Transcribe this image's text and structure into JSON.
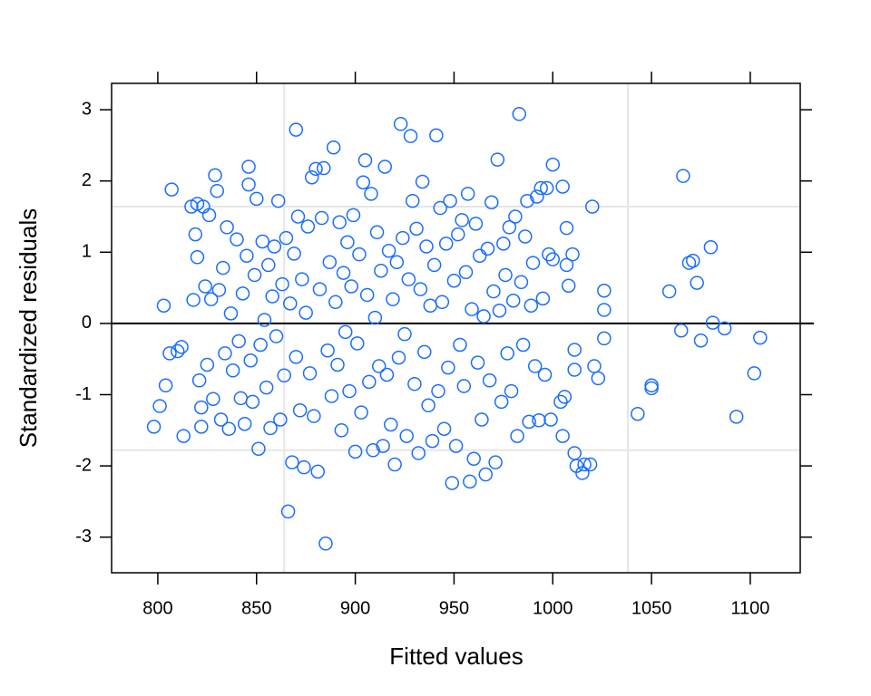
{
  "chart_data": {
    "type": "scatter",
    "xlabel": "Fitted values",
    "ylabel": "Standardized residuals",
    "xlim": [
      776.6,
      1125.3
    ],
    "ylim": [
      -3.5,
      3.37
    ],
    "xticks": [
      800,
      850,
      900,
      950,
      1000,
      1050,
      1100
    ],
    "yticks": [
      -3,
      -2,
      -1,
      0,
      1,
      2,
      3
    ],
    "grid_x": [
      864,
      1038
    ],
    "grid_y": [
      -1.78,
      1.64
    ],
    "hline": 0,
    "color": "#1a6dff",
    "x": [
      798,
      801,
      803,
      804,
      806,
      807,
      810,
      812,
      813,
      817,
      818,
      819,
      820,
      820,
      821,
      822,
      822,
      823,
      824,
      825,
      826,
      827,
      828,
      829,
      830,
      831,
      832,
      833,
      834,
      835,
      836,
      837,
      838,
      840,
      841,
      842,
      843,
      844,
      845,
      846,
      846,
      847,
      848,
      849,
      850,
      851,
      852,
      853,
      854,
      855,
      856,
      857,
      858,
      859,
      860,
      861,
      862,
      863,
      864,
      865,
      866,
      867,
      868,
      869,
      870,
      870,
      871,
      872,
      873,
      874,
      875,
      876,
      877,
      878,
      879,
      880,
      881,
      882,
      883,
      884,
      885,
      886,
      887,
      888,
      889,
      890,
      891,
      892,
      893,
      894,
      895,
      896,
      897,
      898,
      899,
      900,
      901,
      902,
      903,
      904,
      905,
      906,
      907,
      908,
      909,
      910,
      911,
      912,
      913,
      914,
      915,
      916,
      917,
      918,
      919,
      920,
      921,
      922,
      923,
      924,
      925,
      926,
      927,
      928,
      929,
      930,
      931,
      932,
      933,
      934,
      935,
      936,
      937,
      938,
      939,
      940,
      941,
      942,
      943,
      944,
      945,
      946,
      947,
      948,
      949,
      950,
      951,
      952,
      953,
      954,
      955,
      956,
      957,
      958,
      959,
      960,
      961,
      962,
      963,
      964,
      965,
      966,
      967,
      968,
      969,
      970,
      971,
      972,
      973,
      974,
      975,
      976,
      977,
      978,
      979,
      980,
      981,
      982,
      983,
      984,
      985,
      986,
      987,
      988,
      989,
      990,
      991,
      992,
      993,
      994,
      995,
      996,
      997,
      998,
      999,
      1000,
      1000,
      1004,
      1005,
      1005,
      1006,
      1007,
      1007,
      1008,
      1010,
      1011,
      1011,
      1011,
      1012,
      1015,
      1016,
      1019,
      1020,
      1021,
      1023,
      1026,
      1026,
      1026,
      1043,
      1050,
      1050,
      1059,
      1065,
      1066,
      1069,
      1071,
      1073,
      1075,
      1080,
      1081,
      1087,
      1093,
      1102,
      1105
    ],
    "values": [
      -1.45,
      -1.16,
      0.25,
      -0.87,
      -0.42,
      1.88,
      -0.39,
      -0.33,
      -1.58,
      1.64,
      0.33,
      1.25,
      0.93,
      1.68,
      -0.8,
      -1.18,
      -1.45,
      1.64,
      0.52,
      -0.58,
      1.52,
      0.34,
      -1.06,
      2.08,
      1.86,
      0.47,
      -1.35,
      0.78,
      -0.42,
      1.35,
      -1.48,
      0.14,
      -0.66,
      1.18,
      -0.25,
      -1.05,
      0.42,
      -1.41,
      0.95,
      2.2,
      1.95,
      -0.52,
      -1.1,
      0.68,
      1.75,
      -1.76,
      -0.3,
      1.15,
      0.05,
      -0.9,
      0.82,
      -1.47,
      0.38,
      1.08,
      -0.18,
      1.72,
      -1.35,
      0.55,
      -0.73,
      1.2,
      -2.64,
      0.28,
      -1.95,
      0.98,
      2.72,
      -0.47,
      1.5,
      -1.22,
      0.62,
      -2.02,
      0.15,
      1.36,
      -0.7,
      2.05,
      -1.3,
      2.17,
      -2.08,
      0.48,
      1.48,
      2.18,
      -3.09,
      -0.38,
      0.86,
      -1.02,
      2.47,
      0.3,
      -0.58,
      1.42,
      -1.5,
      0.71,
      -0.12,
      1.14,
      -0.95,
      0.52,
      1.52,
      -1.8,
      -0.28,
      0.97,
      -1.25,
      1.98,
      2.29,
      0.4,
      -0.82,
      1.82,
      -1.78,
      0.08,
      1.28,
      -0.6,
      0.74,
      -1.72,
      2.2,
      -0.72,
      1.02,
      -1.42,
      0.34,
      -1.98,
      0.86,
      -0.48,
      2.8,
      1.2,
      -0.15,
      -1.58,
      0.62,
      2.63,
      1.72,
      -0.85,
      1.33,
      -1.82,
      0.48,
      1.99,
      -0.4,
      1.08,
      -1.15,
      0.25,
      -1.65,
      0.82,
      2.64,
      -0.95,
      1.62,
      0.3,
      -1.48,
      1.12,
      -0.62,
      1.72,
      -2.24,
      0.6,
      -1.72,
      1.25,
      -0.3,
      1.45,
      -0.88,
      0.72,
      1.82,
      -2.22,
      0.2,
      -1.9,
      1.4,
      -0.55,
      0.95,
      -1.35,
      0.1,
      -2.12,
      1.05,
      -0.8,
      1.7,
      0.45,
      -1.95,
      2.3,
      0.18,
      -1.1,
      1.12,
      0.68,
      -0.42,
      1.35,
      -0.95,
      0.32,
      1.5,
      -1.58,
      2.94,
      0.58,
      -0.3,
      1.22,
      1.72,
      -1.38,
      0.25,
      0.85,
      -0.6,
      1.78,
      -1.36,
      1.9,
      0.35,
      -0.72,
      1.9,
      0.97,
      -1.35,
      2.23,
      0.9,
      -1.1,
      1.92,
      -1.58,
      -1.03,
      1.34,
      0.82,
      0.53,
      0.97,
      -0.37,
      -0.65,
      -1.82,
      -2.0,
      -2.1,
      -1.98,
      -1.98,
      1.64,
      -0.6,
      -0.77,
      0.46,
      0.19,
      -0.21,
      -1.27,
      -0.87,
      -0.91,
      0.45,
      -0.1,
      2.07,
      0.85,
      0.88,
      0.57,
      -0.24,
      1.07,
      0.01,
      -0.07,
      -1.31,
      -0.7,
      -0.2
    ]
  }
}
